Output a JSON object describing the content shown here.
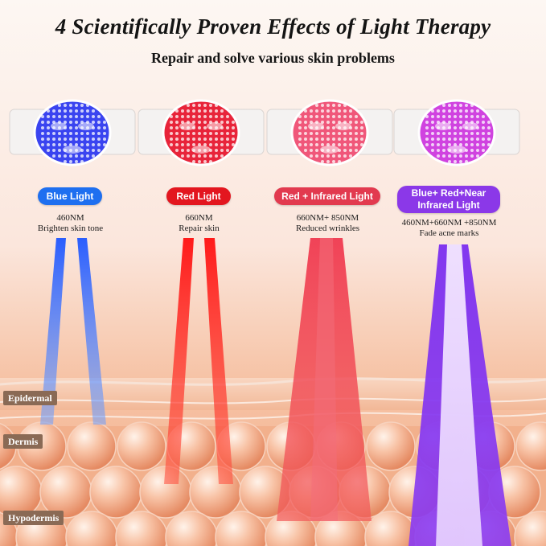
{
  "header": {
    "title": "4 Scientifically Proven Effects of Light Therapy",
    "subtitle": "Repair and solve various skin problems"
  },
  "therapies": [
    {
      "label": "Blue Light",
      "spec": "460NM",
      "benefit": "Brighten skin tone",
      "color": "#2457e6",
      "mask_color": "#3a44f0"
    },
    {
      "label": "Red Light",
      "spec": "660NM",
      "benefit": "Repair skin",
      "color": "#e22a2a",
      "mask_color": "#e8243a"
    },
    {
      "label": "Red + Infrared Light",
      "spec": "660NM+ 850NM",
      "benefit": "Reduced wrinkles",
      "color": "#e0455a",
      "mask_color": "#f0577a"
    },
    {
      "label_line1": "Blue+ Red+Near",
      "label_line2": "Infrared Light",
      "spec": "460NM+660NM +850NM",
      "benefit": "Fade acne marks",
      "color": "#8a3fe0",
      "mask_color": "#d043e0"
    }
  ],
  "skin_layers": [
    "Epidermal",
    "Dermis",
    "Hypodermis"
  ],
  "colors": {
    "skin": "#f3b08e",
    "layer_badge": "#8a6a55"
  }
}
